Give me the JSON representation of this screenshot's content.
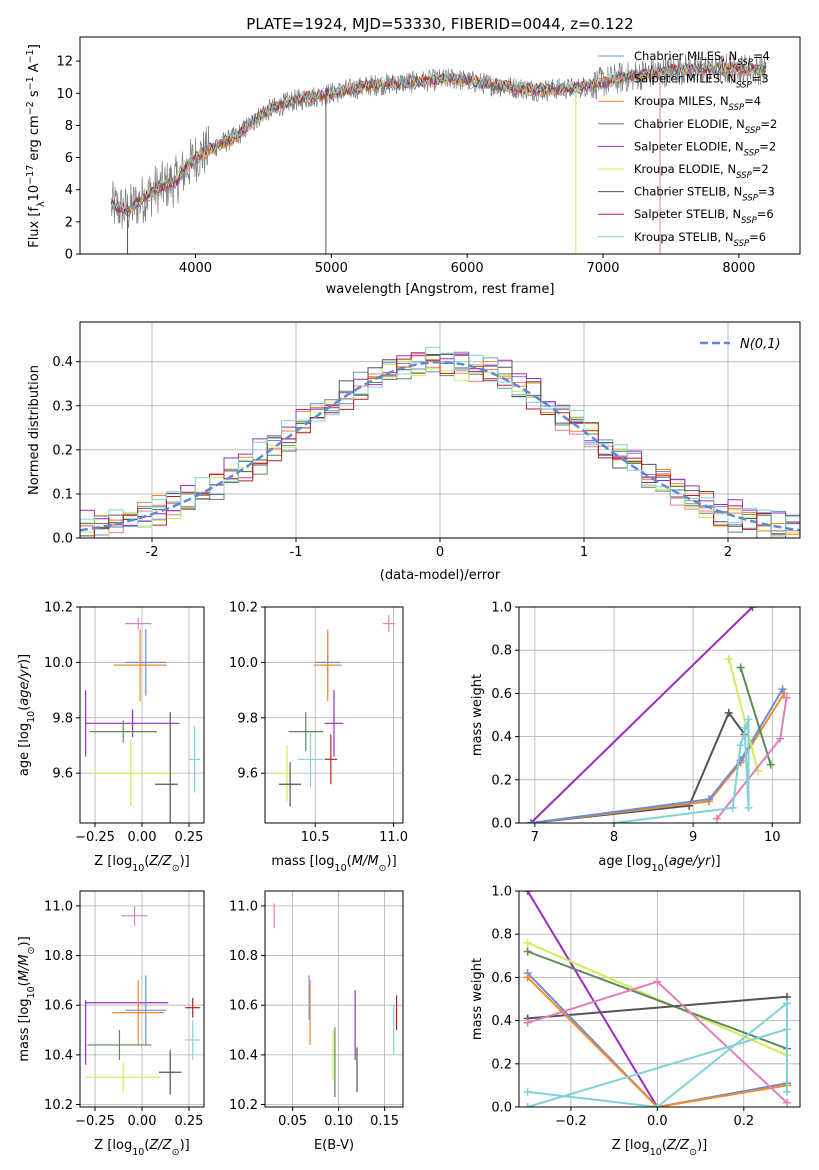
{
  "figure": {
    "title": "PLATE=1924, MJD=53330, FIBERID=0044, z=0.122"
  },
  "colors": {
    "Chabrier MILES": "#6a8fd6",
    "Salpeter MILES": "#f07d7d",
    "Kroupa MILES": "#f28a2e",
    "Chabrier ELODIE": "#5a8a5a",
    "Salpeter ELODIE": "#9b2cc0",
    "Kroupa ELODIE": "#d7e85a",
    "Chabrier STELIB": "#555555",
    "Salpeter STELIB": "#b22222",
    "Kroupa STELIB": "#7fd3d8",
    "pink": "#e27fb8",
    "data": "#7f7f7f",
    "gauss": "#5b8bd6"
  },
  "chart_data": [
    {
      "id": "spectrum",
      "type": "line",
      "xlabel": "wavelength [Angstrom, rest frame]",
      "ylabel": "Flux [f_λ10^-17 erg cm^-2 s^-1 A^-1]",
      "xlim": [
        3150,
        8450
      ],
      "ylim": [
        0,
        13.5
      ],
      "xticks": [
        4000,
        5000,
        6000,
        7000,
        8000
      ],
      "yticks": [
        0,
        2,
        4,
        6,
        8,
        10,
        12
      ],
      "continuum": [
        [
          3380,
          3.0
        ],
        [
          3500,
          2.7
        ],
        [
          3700,
          4.0
        ],
        [
          3850,
          4.5
        ],
        [
          4000,
          6.0
        ],
        [
          4150,
          6.7
        ],
        [
          4300,
          7.3
        ],
        [
          4500,
          8.8
        ],
        [
          4700,
          9.5
        ],
        [
          5000,
          10.0
        ],
        [
          5300,
          10.5
        ],
        [
          5600,
          10.7
        ],
        [
          5900,
          10.9
        ],
        [
          6200,
          10.5
        ],
        [
          6500,
          10.2
        ],
        [
          6800,
          10.3
        ],
        [
          7100,
          10.9
        ],
        [
          7300,
          11.2
        ],
        [
          7600,
          11.5
        ],
        [
          7900,
          11.5
        ],
        [
          8200,
          11.5
        ]
      ],
      "drops": [
        [
          4960,
          0
        ],
        [
          6800,
          0
        ],
        [
          7420,
          0
        ],
        [
          3500,
          0
        ]
      ],
      "legend": [
        {
          "label": "Chabrier MILES, N_SSP=4",
          "color": "#6a8fd6"
        },
        {
          "label": "Salpeter MILES, N_SSP=3",
          "color": "#f07d7d"
        },
        {
          "label": "Kroupa MILES, N_SSP=4",
          "color": "#f28a2e"
        },
        {
          "label": "Chabrier ELODIE, N_SSP=2",
          "color": "#5a8a5a"
        },
        {
          "label": "Salpeter ELODIE, N_SSP=2",
          "color": "#9b2cc0"
        },
        {
          "label": "Kroupa ELODIE, N_SSP=2",
          "color": "#d7e85a"
        },
        {
          "label": "Chabrier STELIB, N_SSP=3",
          "color": "#555555"
        },
        {
          "label": "Salpeter STELIB, N_SSP=6",
          "color": "#b22222"
        },
        {
          "label": "Kroupa STELIB, N_SSP=6",
          "color": "#7fd3d8"
        }
      ]
    },
    {
      "id": "residuals",
      "type": "line",
      "xlabel": "(data-model)/error",
      "ylabel": "Normed distribution",
      "xlim": [
        -2.5,
        2.5
      ],
      "ylim": [
        0,
        0.49
      ],
      "xticks": [
        -2,
        -1,
        0,
        1,
        2
      ],
      "yticks": [
        0.0,
        0.1,
        0.2,
        0.3,
        0.4
      ],
      "grid": true,
      "legend_label": "N(0,1)",
      "legend_position": "top-right",
      "bin_width": 0.1,
      "series": [
        {
          "name": "Chabrier MILES",
          "color": "#6a8fd6",
          "offset": 0.006
        },
        {
          "name": "Salpeter MILES",
          "color": "#f07d7d",
          "offset": -0.004
        },
        {
          "name": "Kroupa MILES",
          "color": "#f28a2e",
          "offset": 0.01
        },
        {
          "name": "Chabrier ELODIE",
          "color": "#5a8a5a",
          "offset": -0.012
        },
        {
          "name": "Salpeter ELODIE",
          "color": "#9b2cc0",
          "offset": 0.014
        },
        {
          "name": "Kroupa ELODIE",
          "color": "#d7e85a",
          "offset": -0.008
        },
        {
          "name": "Chabrier STELIB",
          "color": "#555555",
          "offset": 0.004
        },
        {
          "name": "Salpeter STELIB",
          "color": "#b22222",
          "offset": -0.002
        },
        {
          "name": "Kroupa STELIB",
          "color": "#7fd3d8",
          "offset": 0.008
        }
      ]
    },
    {
      "id": "age_vs_Z",
      "type": "scatter",
      "xlabel": "Z [log10(Z/Z⊙)]",
      "ylabel": "age  [log10(age/yr)]",
      "xlim": [
        -0.33,
        0.33
      ],
      "ylim": [
        9.42,
        10.2
      ],
      "xticks": [
        -0.25,
        0.0,
        0.25
      ],
      "xtick_labels": [
        "−0.25",
        "0.00",
        "0.25"
      ],
      "yticks": [
        9.6,
        9.8,
        10.0,
        10.2
      ],
      "grid": true,
      "points": [
        {
          "x": -0.02,
          "y": 10.14,
          "xerr": 0.07,
          "yerr": 0.02,
          "color": "#e27fb8"
        },
        {
          "x": 0.02,
          "y": 10.0,
          "xerr": 0.11,
          "yerr": 0.12,
          "color": "#6a8fd6"
        },
        {
          "x": -0.01,
          "y": 9.99,
          "xerr": 0.14,
          "yerr": 0.13,
          "color": "#f28a2e"
        },
        {
          "x": -0.3,
          "y": 9.78,
          "xerr": 0.0,
          "yerr": 0.12,
          "color": "#9b2cc0"
        },
        {
          "x": -0.05,
          "y": 9.78,
          "xerr": 0.25,
          "yerr": 0.05,
          "color": "#9b2cc0"
        },
        {
          "x": -0.1,
          "y": 9.75,
          "xerr": 0.18,
          "yerr": 0.04,
          "color": "#5a8a5a"
        },
        {
          "x": -0.06,
          "y": 9.6,
          "xerr": 0.22,
          "yerr": 0.12,
          "color": "#d7e85a"
        },
        {
          "x": 0.15,
          "y": 9.6,
          "xerr": 0.0,
          "yerr": 0.22,
          "color": "#555555"
        },
        {
          "x": 0.13,
          "y": 9.56,
          "xerr": 0.06,
          "yerr": 0.0,
          "color": "#555555"
        },
        {
          "x": 0.28,
          "y": 9.65,
          "xerr": 0.03,
          "yerr": 0.12,
          "color": "#7fd3d8"
        }
      ]
    },
    {
      "id": "age_vs_mass",
      "type": "scatter",
      "xlabel": "mass [log10(M/M⊙)]",
      "xlim": [
        10.18,
        11.06
      ],
      "ylim": [
        9.42,
        10.2
      ],
      "xticks": [
        10.5,
        11.0
      ],
      "yticks": [
        9.6,
        9.8,
        10.0,
        10.2
      ],
      "grid": true,
      "points": [
        {
          "x": 10.97,
          "y": 10.14,
          "xerr": 0.04,
          "yerr": 0.03,
          "color": "#e27fb8"
        },
        {
          "x": 10.58,
          "y": 10.0,
          "xerr": 0.08,
          "yerr": 0.11,
          "color": "#6a8fd6"
        },
        {
          "x": 10.58,
          "y": 9.99,
          "xerr": 0.09,
          "yerr": 0.13,
          "color": "#f28a2e"
        },
        {
          "x": 10.62,
          "y": 9.78,
          "xerr": 0.06,
          "yerr": 0.12,
          "color": "#9b2cc0"
        },
        {
          "x": 10.44,
          "y": 9.75,
          "xerr": 0.11,
          "yerr": 0.07,
          "color": "#5a8a5a"
        },
        {
          "x": 10.32,
          "y": 9.6,
          "xerr": 0.06,
          "yerr": 0.1,
          "color": "#d7e85a"
        },
        {
          "x": 10.34,
          "y": 9.56,
          "xerr": 0.07,
          "yerr": 0.08,
          "color": "#555555"
        },
        {
          "x": 10.47,
          "y": 9.65,
          "xerr": 0.08,
          "yerr": 0.1,
          "color": "#7fd3d8"
        },
        {
          "x": 10.6,
          "y": 9.65,
          "xerr": 0.04,
          "yerr": 0.09,
          "color": "#b22222"
        }
      ]
    },
    {
      "id": "weight_vs_age",
      "type": "line",
      "xlabel": "age  [log10(age/yr)]",
      "ylabel": "mass weight",
      "xlim": [
        6.8,
        10.35
      ],
      "ylim": [
        0,
        1.0
      ],
      "xticks": [
        7,
        8,
        9,
        10
      ],
      "yticks": [
        0.0,
        0.2,
        0.4,
        0.6,
        0.8,
        1.0
      ],
      "grid": true,
      "series": [
        {
          "color": "#9b2cc0",
          "points": [
            [
              6.95,
              0.0
            ],
            [
              9.75,
              1.0
            ]
          ]
        },
        {
          "color": "#555555",
          "points": [
            [
              6.95,
              0.0
            ],
            [
              8.95,
              0.08
            ],
            [
              9.45,
              0.51
            ],
            [
              9.65,
              0.41
            ]
          ]
        },
        {
          "color": "#f28a2e",
          "points": [
            [
              6.95,
              0.0
            ],
            [
              9.2,
              0.1
            ],
            [
              9.6,
              0.28
            ],
            [
              10.15,
              0.6
            ]
          ]
        },
        {
          "color": "#6a8fd6",
          "points": [
            [
              6.95,
              0.0
            ],
            [
              9.2,
              0.11
            ],
            [
              9.6,
              0.29
            ],
            [
              10.13,
              0.62
            ]
          ]
        },
        {
          "color": "#5a8a5a",
          "points": [
            [
              9.6,
              0.72
            ],
            [
              9.98,
              0.27
            ]
          ]
        },
        {
          "color": "#d7e85a",
          "points": [
            [
              9.45,
              0.76
            ],
            [
              9.82,
              0.24
            ]
          ]
        },
        {
          "color": "#e27fb8",
          "points": [
            [
              9.3,
              0.02
            ],
            [
              10.1,
              0.39
            ],
            [
              10.18,
              0.58
            ]
          ]
        },
        {
          "color": "#7fd3d8",
          "points": [
            [
              8.0,
              0.0
            ],
            [
              9.5,
              0.07
            ],
            [
              9.6,
              0.36
            ],
            [
              9.7,
              0.48
            ],
            [
              9.7,
              0.07
            ],
            [
              9.65,
              0.44
            ]
          ]
        }
      ]
    },
    {
      "id": "mass_vs_Z",
      "type": "scatter",
      "xlabel": "Z [log10(Z/Z⊙)]",
      "ylabel": "mass [log10(M/M⊙)]",
      "xlim": [
        -0.33,
        0.33
      ],
      "ylim": [
        10.19,
        11.06
      ],
      "xticks": [
        -0.25,
        0.0,
        0.25
      ],
      "xtick_labels": [
        "−0.25",
        "0.00",
        "0.25"
      ],
      "yticks": [
        10.2,
        10.4,
        10.6,
        10.8,
        11.0
      ],
      "grid": true,
      "points": [
        {
          "x": -0.04,
          "y": 10.96,
          "xerr": 0.07,
          "yerr": 0.04,
          "color": "#e27fb8"
        },
        {
          "x": -0.08,
          "y": 10.61,
          "xerr": 0.22,
          "yerr": 0.0,
          "color": "#9b2cc0"
        },
        {
          "x": -0.3,
          "y": 10.49,
          "xerr": 0.0,
          "yerr": 0.13,
          "color": "#9b2cc0"
        },
        {
          "x": 0.02,
          "y": 10.58,
          "xerr": 0.11,
          "yerr": 0.14,
          "color": "#6a8fd6"
        },
        {
          "x": -0.02,
          "y": 10.57,
          "xerr": 0.14,
          "yerr": 0.13,
          "color": "#f28a2e"
        },
        {
          "x": 0.27,
          "y": 10.59,
          "xerr": 0.04,
          "yerr": 0.04,
          "color": "#b22222"
        },
        {
          "x": 0.27,
          "y": 10.46,
          "xerr": 0.04,
          "yerr": 0.08,
          "color": "#7fd3d8"
        },
        {
          "x": -0.12,
          "y": 10.44,
          "xerr": 0.17,
          "yerr": 0.06,
          "color": "#5a8a5a"
        },
        {
          "x": 0.15,
          "y": 10.33,
          "xerr": 0.06,
          "yerr": 0.09,
          "color": "#555555"
        },
        {
          "x": -0.1,
          "y": 10.31,
          "xerr": 0.2,
          "yerr": 0.06,
          "color": "#d7e85a"
        }
      ]
    },
    {
      "id": "mass_vs_ebv",
      "type": "scatter",
      "xlabel": "E(B-V)",
      "xlim": [
        0.02,
        0.17
      ],
      "ylim": [
        10.19,
        11.06
      ],
      "xticks": [
        0.05,
        0.1,
        0.15
      ],
      "xtick_labels": [
        "0.05",
        "0.10",
        "0.15"
      ],
      "yticks": [
        10.2,
        10.4,
        10.6,
        10.8,
        11.0
      ],
      "grid": true,
      "points": [
        {
          "x": 0.03,
          "y": 10.96,
          "xerr": 0.0,
          "yerr": 0.05,
          "color": "#e27fb8"
        },
        {
          "x": 0.068,
          "y": 10.63,
          "xerr": 0.0,
          "yerr": 0.09,
          "color": "#6a8fd6"
        },
        {
          "x": 0.069,
          "y": 10.57,
          "xerr": 0.0,
          "yerr": 0.13,
          "color": "#f28a2e"
        },
        {
          "x": 0.094,
          "y": 10.4,
          "xerr": 0.0,
          "yerr": 0.1,
          "color": "#d7e85a"
        },
        {
          "x": 0.096,
          "y": 10.37,
          "xerr": 0.0,
          "yerr": 0.14,
          "color": "#5a8a5a"
        },
        {
          "x": 0.118,
          "y": 10.52,
          "xerr": 0.0,
          "yerr": 0.14,
          "color": "#9b2cc0"
        },
        {
          "x": 0.12,
          "y": 10.34,
          "xerr": 0.0,
          "yerr": 0.09,
          "color": "#555555"
        },
        {
          "x": 0.16,
          "y": 10.5,
          "xerr": 0.0,
          "yerr": 0.1,
          "color": "#7fd3d8"
        },
        {
          "x": 0.163,
          "y": 10.57,
          "xerr": 0.0,
          "yerr": 0.07,
          "color": "#b22222"
        }
      ]
    },
    {
      "id": "weight_vs_Z",
      "type": "line",
      "xlabel": "Z [log10(Z/Z⊙)]",
      "ylabel": "mass weight",
      "xlim": [
        -0.32,
        0.33
      ],
      "ylim": [
        0,
        1.0
      ],
      "xticks": [
        -0.2,
        0.0,
        0.2
      ],
      "xtick_labels": [
        "−0.2",
        "0.0",
        "0.2"
      ],
      "yticks": [
        0.0,
        0.2,
        0.4,
        0.6,
        0.8,
        1.0
      ],
      "grid": true,
      "series": [
        {
          "color": "#9b2cc0",
          "points": [
            [
              -0.3,
              1.0
            ],
            [
              0.0,
              0.0
            ]
          ]
        },
        {
          "color": "#d7e85a",
          "points": [
            [
              -0.3,
              0.76
            ],
            [
              0.3,
              0.24
            ]
          ]
        },
        {
          "color": "#5a8a5a",
          "points": [
            [
              -0.3,
              0.72
            ],
            [
              0.3,
              0.27
            ]
          ]
        },
        {
          "color": "#555555",
          "points": [
            [
              -0.3,
              0.41
            ],
            [
              0.3,
              0.51
            ]
          ]
        },
        {
          "color": "#6a8fd6",
          "points": [
            [
              -0.3,
              0.62
            ],
            [
              0.0,
              0.0
            ],
            [
              0.3,
              0.11
            ]
          ]
        },
        {
          "color": "#f28a2e",
          "points": [
            [
              -0.3,
              0.6
            ],
            [
              0.0,
              0.0
            ],
            [
              0.3,
              0.1
            ]
          ]
        },
        {
          "color": "#e27fb8",
          "points": [
            [
              -0.3,
              0.39
            ],
            [
              0.0,
              0.58
            ],
            [
              0.3,
              0.02
            ]
          ]
        },
        {
          "color": "#7fd3d8",
          "points": [
            [
              -0.3,
              0.07
            ],
            [
              0.0,
              0.0
            ],
            [
              0.3,
              0.48
            ],
            [
              0.3,
              0.07
            ],
            [
              0.3,
              0.36
            ],
            [
              -0.3,
              0.0
            ]
          ]
        }
      ]
    }
  ]
}
